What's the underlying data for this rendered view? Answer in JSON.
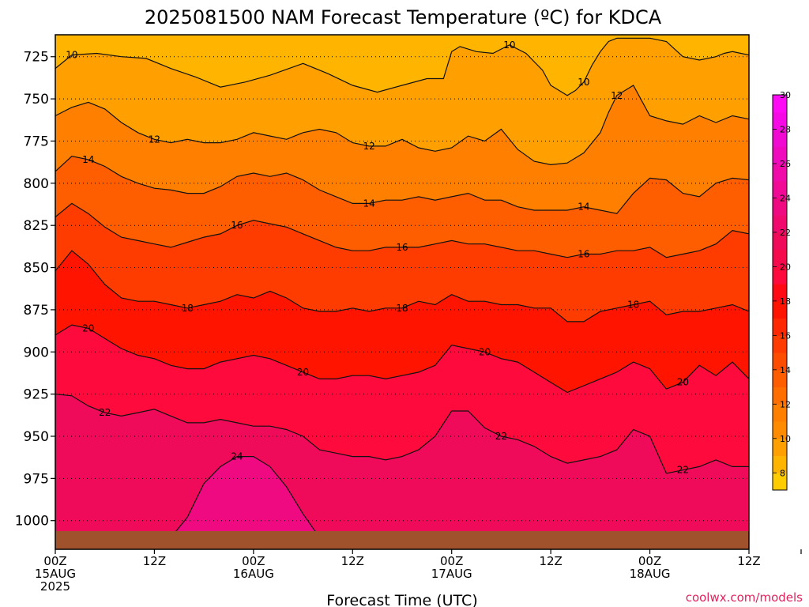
{
  "chart_data": {
    "type": "heatmap",
    "title": "2025081500 NAM Forecast Temperature (ºC) for KDCA",
    "xlabel": "Forecast Time (UTC)",
    "ylabel": "",
    "watermark": "coolwx.com/models",
    "x_ticks": [
      {
        "hour": 0,
        "lines": [
          "00Z",
          "15AUG",
          "2025"
        ]
      },
      {
        "hour": 12,
        "lines": [
          "12Z"
        ]
      },
      {
        "hour": 24,
        "lines": [
          "00Z",
          "16AUG"
        ]
      },
      {
        "hour": 36,
        "lines": [
          "12Z"
        ]
      },
      {
        "hour": 48,
        "lines": [
          "00Z",
          "17AUG"
        ]
      },
      {
        "hour": 60,
        "lines": [
          "12Z"
        ]
      },
      {
        "hour": 72,
        "lines": [
          "00Z",
          "18AUG"
        ]
      },
      {
        "hour": 84,
        "lines": [
          "12Z"
        ]
      }
    ],
    "xlim": [
      0,
      84
    ],
    "y_ticks": [
      725,
      750,
      775,
      800,
      825,
      850,
      875,
      900,
      925,
      950,
      975,
      1000
    ],
    "ylim": [
      1017,
      712
    ],
    "ground_color": "#a0522d",
    "grid": "dotted horizontal at pressure ticks",
    "colorbar": {
      "levels": [
        7,
        8,
        9,
        10,
        11,
        12,
        13,
        14,
        15,
        16,
        17,
        18,
        19,
        20,
        21,
        22,
        23,
        24,
        25,
        26,
        27,
        28,
        29,
        30,
        31
      ],
      "labels": [
        "8",
        "10",
        "12",
        "14",
        "16",
        "18",
        "20",
        "22",
        "24",
        "26",
        "28",
        "30"
      ],
      "colors": [
        "#ffcc00",
        "#ffb400",
        "#ffa000",
        "#ff8c00",
        "#ff7f00",
        "#ff6e00",
        "#ff5e00",
        "#ff4d00",
        "#ff3c00",
        "#ff2800",
        "#ff1400",
        "#ff0a14",
        "#ff0a3c",
        "#f50a4b",
        "#f00a5a",
        "#f00a6e",
        "#f00a82",
        "#f00a96",
        "#f00aaa",
        "#f00abe",
        "#f00ad2",
        "#f50ae6",
        "#ff0af5"
      ]
    },
    "contour_labels": [
      "10",
      "12",
      "14",
      "16",
      "18",
      "20",
      "22",
      "24"
    ],
    "series": [
      {
        "name": "10",
        "x": [
          0,
          2,
          5,
          8,
          11,
          14,
          17,
          20,
          23,
          26,
          30,
          33,
          36,
          39,
          42,
          45,
          47,
          48,
          49,
          51,
          53,
          55,
          57,
          59,
          60,
          62,
          63,
          64,
          65,
          66,
          67,
          68,
          70,
          72,
          74,
          76,
          78,
          80,
          81,
          82,
          84
        ],
        "y": [
          732,
          724,
          723,
          725,
          726,
          732,
          737,
          743,
          740,
          736,
          729,
          735,
          742,
          746,
          742,
          738,
          738,
          722,
          719,
          722,
          723,
          718,
          723,
          733,
          742,
          748,
          745,
          740,
          730,
          722,
          716,
          714,
          714,
          714,
          716,
          725,
          727,
          725,
          723,
          722,
          724
        ]
      },
      {
        "name": "12",
        "x": [
          0,
          2,
          4,
          6,
          8,
          10,
          12,
          14,
          16,
          18,
          20,
          22,
          24,
          26,
          28,
          30,
          32,
          34,
          36,
          38,
          40,
          42,
          44,
          46,
          48,
          50,
          52,
          54,
          56,
          58,
          60,
          62,
          64,
          66,
          67,
          68,
          70,
          72,
          74,
          76,
          78,
          80,
          82,
          84
        ],
        "y": [
          760,
          755,
          752,
          756,
          764,
          770,
          774,
          776,
          774,
          776,
          776,
          774,
          770,
          772,
          774,
          770,
          768,
          770,
          776,
          778,
          778,
          774,
          779,
          781,
          779,
          772,
          775,
          768,
          780,
          787,
          789,
          788,
          782,
          770,
          758,
          748,
          742,
          760,
          763,
          765,
          760,
          764,
          760,
          762
        ]
      },
      {
        "name": "14",
        "x": [
          0,
          2,
          4,
          6,
          8,
          10,
          12,
          14,
          16,
          18,
          20,
          22,
          24,
          26,
          28,
          30,
          32,
          34,
          36,
          38,
          40,
          42,
          44,
          46,
          48,
          50,
          52,
          54,
          56,
          58,
          60,
          62,
          64,
          66,
          68,
          70,
          72,
          74,
          76,
          78,
          80,
          82,
          84
        ],
        "y": [
          793,
          784,
          786,
          790,
          796,
          800,
          803,
          804,
          806,
          806,
          802,
          796,
          794,
          796,
          794,
          798,
          804,
          808,
          812,
          812,
          810,
          810,
          808,
          810,
          808,
          806,
          810,
          810,
          814,
          816,
          816,
          816,
          814,
          816,
          818,
          806,
          797,
          798,
          806,
          808,
          800,
          797,
          798
        ]
      },
      {
        "name": "16",
        "x": [
          0,
          2,
          4,
          6,
          8,
          10,
          12,
          14,
          16,
          18,
          20,
          22,
          24,
          26,
          28,
          30,
          32,
          34,
          36,
          38,
          40,
          42,
          44,
          46,
          48,
          50,
          52,
          54,
          56,
          58,
          60,
          62,
          64,
          66,
          68,
          70,
          72,
          74,
          76,
          78,
          80,
          82,
          84
        ],
        "y": [
          820,
          812,
          818,
          826,
          832,
          834,
          836,
          838,
          835,
          832,
          830,
          825,
          822,
          824,
          826,
          830,
          834,
          838,
          840,
          840,
          838,
          838,
          838,
          836,
          834,
          836,
          836,
          838,
          840,
          840,
          842,
          844,
          842,
          842,
          840,
          840,
          838,
          844,
          842,
          840,
          836,
          828,
          830
        ]
      },
      {
        "name": "18",
        "x": [
          0,
          2,
          4,
          6,
          8,
          10,
          12,
          14,
          16,
          18,
          20,
          22,
          24,
          26,
          28,
          30,
          32,
          34,
          36,
          38,
          40,
          42,
          44,
          46,
          48,
          50,
          52,
          54,
          56,
          58,
          60,
          62,
          64,
          66,
          68,
          70,
          72,
          74,
          76,
          78,
          80,
          82,
          84
        ],
        "y": [
          852,
          840,
          848,
          860,
          868,
          870,
          870,
          872,
          874,
          872,
          870,
          866,
          868,
          864,
          868,
          874,
          876,
          876,
          874,
          876,
          874,
          874,
          870,
          872,
          866,
          870,
          870,
          872,
          872,
          874,
          874,
          882,
          882,
          876,
          874,
          872,
          870,
          878,
          876,
          876,
          874,
          872,
          876
        ]
      },
      {
        "name": "20",
        "x": [
          0,
          2,
          4,
          6,
          8,
          10,
          12,
          14,
          16,
          18,
          20,
          22,
          24,
          26,
          28,
          30,
          32,
          34,
          36,
          38,
          40,
          42,
          44,
          46,
          48,
          50,
          52,
          54,
          56,
          58,
          60,
          62,
          64,
          66,
          68,
          70,
          72,
          74,
          76,
          78,
          80,
          82,
          84
        ],
        "y": [
          890,
          884,
          886,
          892,
          898,
          902,
          904,
          908,
          910,
          910,
          906,
          904,
          902,
          904,
          908,
          912,
          916,
          916,
          914,
          914,
          916,
          914,
          912,
          908,
          896,
          898,
          900,
          904,
          906,
          912,
          918,
          924,
          920,
          916,
          912,
          906,
          910,
          922,
          918,
          908,
          914,
          906,
          916
        ]
      },
      {
        "name": "22",
        "x": [
          0,
          2,
          4,
          6,
          8,
          10,
          12,
          14,
          16,
          18,
          20,
          22,
          24,
          26,
          28,
          30,
          32,
          34,
          36,
          38,
          40,
          42,
          44,
          46,
          48,
          50,
          52,
          54,
          56,
          58,
          60,
          62,
          64,
          66,
          68,
          70,
          72,
          74,
          76,
          78,
          80,
          82,
          84
        ],
        "y": [
          925,
          926,
          932,
          936,
          938,
          936,
          934,
          938,
          942,
          942,
          940,
          942,
          944,
          944,
          946,
          950,
          958,
          960,
          962,
          962,
          964,
          962,
          958,
          950,
          935,
          935,
          945,
          950,
          952,
          956,
          962,
          966,
          964,
          962,
          958,
          946,
          950,
          972,
          970,
          968,
          964,
          968,
          968
        ]
      },
      {
        "name": "24",
        "x": [
          14,
          16,
          18,
          20,
          22,
          24,
          26,
          28,
          30,
          32
        ],
        "y": [
          1010,
          998,
          978,
          968,
          962,
          962,
          968,
          980,
          996,
          1010
        ]
      }
    ]
  }
}
